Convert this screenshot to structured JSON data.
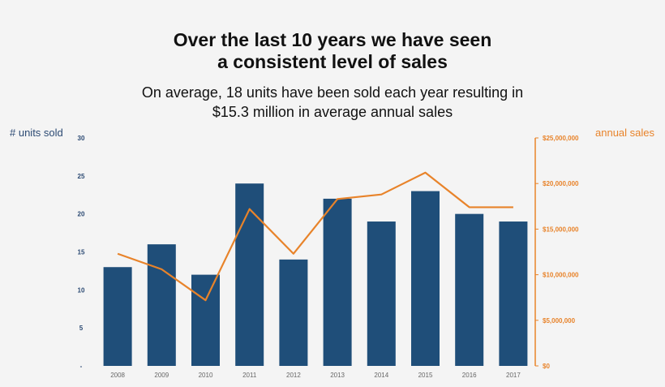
{
  "heading": {
    "title_line1": "Over the last 10 years we have seen",
    "title_line2": "a consistent level of sales",
    "subtitle_line1": "On average, 18 units have been sold each year resulting in",
    "subtitle_line2": "$15.3 million in average annual sales"
  },
  "chart_data": {
    "type": "bar",
    "categories": [
      "2008",
      "2009",
      "2010",
      "2011",
      "2012",
      "2013",
      "2014",
      "2015",
      "2016",
      "2017"
    ],
    "series": [
      {
        "name": "# units sold",
        "type": "bar",
        "axis": "left",
        "color": "#1f4e79",
        "values": [
          13,
          16,
          12,
          24,
          14,
          22,
          19,
          23,
          20,
          19
        ]
      },
      {
        "name": "annual sales",
        "type": "line",
        "axis": "right",
        "color": "#e8832a",
        "values": [
          12300000,
          10600000,
          7200000,
          17200000,
          12300000,
          18300000,
          18800000,
          21200000,
          17400000,
          17400000
        ]
      }
    ],
    "y_left": {
      "label": "# units sold",
      "range": [
        0,
        30
      ],
      "ticks": [
        "-",
        "5",
        "10",
        "15",
        "20",
        "25",
        "30"
      ],
      "color": "#2c4a73"
    },
    "y_right": {
      "label": "annual sales",
      "range": [
        0,
        25000000
      ],
      "ticks": [
        "$0",
        "$5,000,000",
        "$10,000,000",
        "$15,000,000",
        "$20,000,000",
        "$25,000,000"
      ],
      "color": "#e8832a"
    },
    "grid": false,
    "legend": "none"
  }
}
